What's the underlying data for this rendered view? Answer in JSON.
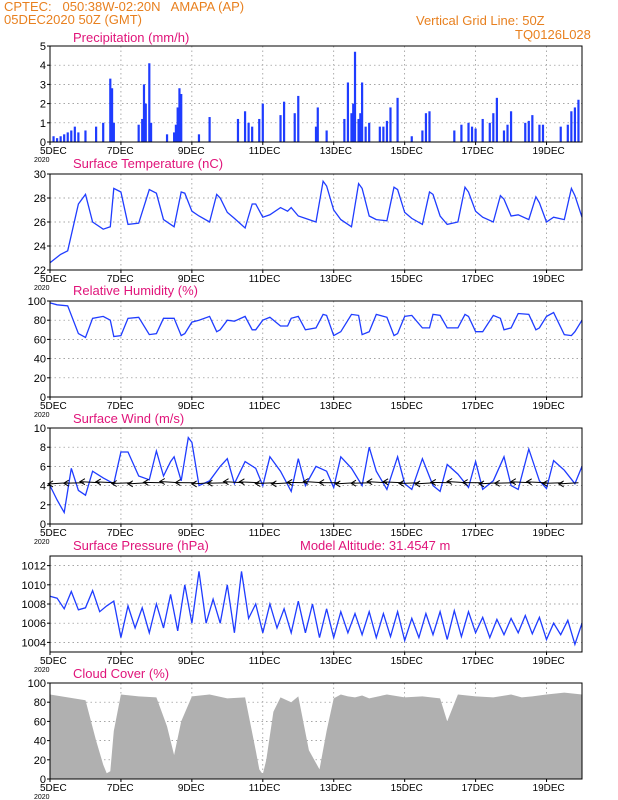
{
  "header": {
    "line1_left": "CPTEC:   050:38W-02:20N   AMAPA (AP)",
    "line2_left": "05DEC2020 50Z (GMT)",
    "line1_right": "Vertical Grid Line: 50Z",
    "line2_right": "TQ0126L028"
  },
  "colors": {
    "header": "#e8801f",
    "title": "#e0147a",
    "series": "#1f3cff",
    "cloud": "#b0b0b0",
    "arrows": "#000000"
  },
  "x_axis": {
    "days_range": [
      5,
      20
    ],
    "tick_days": [
      5,
      7,
      9,
      11,
      13,
      15,
      17,
      19
    ],
    "tick_labels": [
      "5DEC",
      "7DEC",
      "9DEC",
      "11DEC",
      "13DEC",
      "15DEC",
      "17DEC",
      "19DEC"
    ],
    "first_tick_sublabel": "2020"
  },
  "chart_data": [
    {
      "type": "bar",
      "title": "Precipitation (mm/h)",
      "ylim": [
        0,
        5
      ],
      "yticks": [
        0,
        1,
        2,
        3,
        4,
        5
      ],
      "grid": true,
      "series": [
        {
          "x": [
            5.1,
            5.2,
            5.3,
            5.4,
            5.5,
            5.6,
            5.7,
            5.8,
            6.0,
            6.3,
            6.5,
            6.7,
            6.75,
            6.8,
            7.5,
            7.6,
            7.65,
            7.7,
            7.8,
            7.85,
            8.3,
            8.5,
            8.55,
            8.6,
            8.65,
            8.7,
            9.2,
            9.5,
            10.3,
            10.5,
            10.6,
            10.7,
            10.9,
            11.0,
            11.5,
            11.6,
            11.9,
            12.0,
            12.5,
            12.55,
            12.8,
            13.3,
            13.4,
            13.5,
            13.55,
            13.6,
            13.7,
            13.75,
            13.8,
            13.9,
            14.0,
            14.3,
            14.4,
            14.5,
            14.6,
            14.8,
            15.2,
            15.5,
            15.6,
            15.7,
            16.4,
            16.6,
            16.8,
            16.9,
            17.0,
            17.2,
            17.4,
            17.5,
            17.6,
            17.8,
            17.9,
            18.0,
            18.4,
            18.5,
            18.6,
            18.8,
            18.9,
            19.4,
            19.6,
            19.7,
            19.8,
            19.9
          ],
          "values": [
            0.3,
            0.2,
            0.3,
            0.4,
            0.5,
            0.6,
            0.8,
            0.5,
            0.6,
            0.8,
            1.0,
            3.3,
            2.8,
            1.0,
            0.9,
            1.2,
            3.0,
            2.0,
            4.1,
            1.0,
            0.4,
            0.5,
            0.9,
            1.8,
            2.8,
            2.5,
            0.4,
            1.3,
            1.2,
            1.6,
            1.0,
            0.8,
            1.2,
            2.0,
            1.4,
            2.1,
            1.5,
            2.4,
            0.8,
            1.8,
            0.6,
            1.2,
            3.1,
            1.5,
            2.0,
            4.7,
            1.2,
            1.5,
            3.1,
            0.8,
            1.0,
            0.8,
            0.8,
            1.1,
            1.8,
            2.3,
            0.3,
            0.6,
            1.5,
            1.6,
            0.6,
            0.9,
            1.0,
            0.8,
            0.7,
            1.2,
            1.0,
            1.5,
            2.3,
            0.6,
            0.9,
            1.6,
            1.0,
            1.1,
            1.4,
            0.9,
            0.9,
            0.8,
            0.9,
            1.6,
            1.8,
            2.2
          ]
        }
      ]
    },
    {
      "type": "line",
      "title": "Surface Temperature (nC)",
      "ylim": [
        22,
        30
      ],
      "yticks": [
        22,
        24,
        26,
        28,
        30
      ],
      "grid": true,
      "series": [
        {
          "x": [
            5,
            5.3,
            5.5,
            5.8,
            6.0,
            6.2,
            6.5,
            6.7,
            6.8,
            7.0,
            7.2,
            7.5,
            7.8,
            8.0,
            8.2,
            8.5,
            8.7,
            8.8,
            9.0,
            9.2,
            9.5,
            9.7,
            9.8,
            10.0,
            10.2,
            10.5,
            10.7,
            10.8,
            11.0,
            11.2,
            11.5,
            11.7,
            11.8,
            12.0,
            12.2,
            12.5,
            12.7,
            12.8,
            13.0,
            13.2,
            13.5,
            13.7,
            13.8,
            14.0,
            14.2,
            14.5,
            14.7,
            14.8,
            15.0,
            15.2,
            15.5,
            15.7,
            15.8,
            16.0,
            16.2,
            16.5,
            16.7,
            16.8,
            17.0,
            17.2,
            17.5,
            17.7,
            17.8,
            18.0,
            18.2,
            18.5,
            18.7,
            18.8,
            19.0,
            19.2,
            19.5,
            19.7,
            19.8,
            20.0
          ],
          "values": [
            22.6,
            23.3,
            23.6,
            27.5,
            28.3,
            26.0,
            25.4,
            25.6,
            28.8,
            28.5,
            25.8,
            25.9,
            28.7,
            28.4,
            26.2,
            25.6,
            28.5,
            28.4,
            26.9,
            26.5,
            26.0,
            28.3,
            28.0,
            26.8,
            26.3,
            25.5,
            27.5,
            27.5,
            26.4,
            26.6,
            27.2,
            26.9,
            27.2,
            26.5,
            26.3,
            26.0,
            29.4,
            29.0,
            27.0,
            26.2,
            25.6,
            29.2,
            28.8,
            26.5,
            26.2,
            26.1,
            28.9,
            28.7,
            26.8,
            26.3,
            25.8,
            28.5,
            28.3,
            26.5,
            25.8,
            26.0,
            28.9,
            28.5,
            26.9,
            26.4,
            26.0,
            28.2,
            27.9,
            26.5,
            26.6,
            26.2,
            28.1,
            27.6,
            26.0,
            26.4,
            26.2,
            28.8,
            28.2,
            26.4
          ]
        }
      ]
    },
    {
      "type": "line",
      "title": "Relative Humidity (%)",
      "ylim": [
        0,
        100
      ],
      "yticks": [
        0,
        20,
        40,
        60,
        80,
        100
      ],
      "grid": true,
      "series": [
        {
          "x": [
            5,
            5.2,
            5.5,
            5.8,
            6.0,
            6.2,
            6.5,
            6.7,
            6.8,
            7.0,
            7.2,
            7.5,
            7.8,
            8.0,
            8.2,
            8.5,
            8.7,
            8.8,
            9.0,
            9.2,
            9.5,
            9.7,
            9.8,
            10.0,
            10.2,
            10.5,
            10.7,
            10.8,
            11.0,
            11.2,
            11.5,
            11.7,
            11.8,
            12.0,
            12.2,
            12.5,
            12.7,
            12.8,
            13.0,
            13.2,
            13.5,
            13.7,
            13.8,
            14.0,
            14.2,
            14.5,
            14.7,
            14.8,
            15.0,
            15.2,
            15.5,
            15.7,
            15.8,
            16.0,
            16.2,
            16.5,
            16.7,
            16.8,
            17.0,
            17.2,
            17.5,
            17.7,
            17.8,
            18.0,
            18.2,
            18.5,
            18.7,
            18.8,
            19.0,
            19.2,
            19.5,
            19.7,
            19.8,
            20.0
          ],
          "values": [
            98,
            96,
            95,
            66,
            62,
            82,
            84,
            80,
            63,
            64,
            82,
            83,
            65,
            66,
            82,
            82,
            64,
            66,
            78,
            80,
            84,
            68,
            70,
            80,
            79,
            84,
            70,
            70,
            80,
            83,
            74,
            74,
            82,
            84,
            70,
            72,
            86,
            85,
            64,
            68,
            86,
            85,
            65,
            68,
            86,
            83,
            64,
            66,
            84,
            85,
            72,
            72,
            86,
            85,
            72,
            72,
            86,
            84,
            68,
            68,
            85,
            82,
            70,
            72,
            87,
            86,
            70,
            72,
            84,
            88,
            65,
            64,
            68,
            80
          ]
        }
      ]
    },
    {
      "type": "line",
      "title": "Surface Wind (m/s)",
      "ylim": [
        0,
        10
      ],
      "yticks": [
        0,
        2,
        4,
        6,
        8,
        10
      ],
      "grid": true,
      "series": [
        {
          "x": [
            5,
            5.2,
            5.4,
            5.6,
            5.8,
            6.0,
            6.2,
            6.5,
            6.8,
            7.0,
            7.2,
            7.5,
            7.8,
            8.0,
            8.2,
            8.4,
            8.5,
            8.7,
            8.9,
            9.0,
            9.2,
            9.5,
            9.8,
            10.0,
            10.2,
            10.5,
            10.8,
            11.0,
            11.2,
            11.5,
            11.8,
            12.0,
            12.2,
            12.5,
            12.8,
            13.0,
            13.2,
            13.5,
            13.8,
            14.0,
            14.2,
            14.5,
            14.8,
            15.0,
            15.2,
            15.5,
            15.8,
            16.0,
            16.2,
            16.5,
            16.8,
            17.0,
            17.2,
            17.5,
            17.8,
            18.0,
            18.2,
            18.5,
            18.8,
            19.0,
            19.2,
            19.5,
            19.8,
            20.0
          ],
          "values": [
            4.0,
            2.5,
            1.2,
            5.8,
            3.5,
            3.0,
            5.5,
            4.8,
            4.2,
            7.5,
            7.5,
            5.0,
            4.6,
            7.6,
            5.0,
            6.5,
            7.0,
            4.5,
            9.0,
            8.5,
            4.0,
            4.5,
            6.0,
            6.8,
            4.2,
            6.5,
            5.8,
            4.0,
            7.0,
            5.5,
            3.4,
            6.8,
            4.0,
            6.0,
            5.5,
            3.8,
            7.0,
            5.8,
            4.0,
            8.0,
            5.5,
            3.6,
            7.0,
            4.2,
            3.6,
            6.8,
            4.0,
            3.4,
            6.2,
            5.2,
            3.8,
            6.5,
            3.6,
            4.5,
            7.0,
            4.0,
            3.6,
            7.8,
            4.5,
            3.7,
            6.6,
            5.6,
            4.2,
            6.0
          ]
        }
      ],
      "vectors_shown": true
    },
    {
      "type": "line",
      "title": "Surface Pressure (hPa)",
      "annotation": "Model Altitude: 31.4547 m",
      "ylim": [
        1003,
        1013
      ],
      "yticks": [
        1004,
        1006,
        1008,
        1010,
        1012
      ],
      "grid": true,
      "series": [
        {
          "x": [
            5,
            5.2,
            5.4,
            5.6,
            5.8,
            6.0,
            6.2,
            6.4,
            6.6,
            6.8,
            7.0,
            7.2,
            7.4,
            7.6,
            7.8,
            8.0,
            8.2,
            8.4,
            8.6,
            8.8,
            9.0,
            9.2,
            9.4,
            9.6,
            9.8,
            10.0,
            10.2,
            10.4,
            10.6,
            10.8,
            11.0,
            11.2,
            11.4,
            11.6,
            11.8,
            12.0,
            12.2,
            12.4,
            12.6,
            12.8,
            13.0,
            13.2,
            13.4,
            13.6,
            13.8,
            14.0,
            14.2,
            14.4,
            14.6,
            14.8,
            15.0,
            15.2,
            15.4,
            15.6,
            15.8,
            16.0,
            16.2,
            16.4,
            16.6,
            16.8,
            17.0,
            17.2,
            17.4,
            17.6,
            17.8,
            18.0,
            18.2,
            18.4,
            18.6,
            18.8,
            19.0,
            19.2,
            19.4,
            19.6,
            19.8,
            20.0
          ],
          "values": [
            1008.8,
            1008.6,
            1007.5,
            1009.3,
            1007.4,
            1007.6,
            1009.4,
            1007.2,
            1007.8,
            1008.3,
            1004.5,
            1007.8,
            1005.5,
            1007.6,
            1005.0,
            1008.0,
            1005.5,
            1009.0,
            1005.2,
            1010.0,
            1006.0,
            1011.4,
            1006.0,
            1008.5,
            1006.0,
            1010.0,
            1005.0,
            1011.4,
            1006.5,
            1008.0,
            1005.0,
            1008.0,
            1005.5,
            1007.5,
            1005.0,
            1008.3,
            1005.0,
            1008.0,
            1004.5,
            1007.5,
            1004.5,
            1007.2,
            1005.0,
            1007.0,
            1004.8,
            1007.2,
            1004.5,
            1007.0,
            1004.6,
            1007.2,
            1004.2,
            1006.5,
            1004.5,
            1007.0,
            1004.8,
            1007.2,
            1004.3,
            1007.3,
            1004.6,
            1007.2,
            1005.0,
            1006.6,
            1004.5,
            1006.4,
            1004.8,
            1006.5,
            1005.0,
            1006.8,
            1004.9,
            1006.6,
            1004.3,
            1006.0,
            1004.8,
            1006.3,
            1003.8,
            1006.0
          ]
        }
      ]
    },
    {
      "type": "area",
      "title": "Cloud Cover (%)",
      "ylim": [
        0,
        100
      ],
      "yticks": [
        0,
        20,
        40,
        60,
        80,
        100
      ],
      "grid": true,
      "series": [
        {
          "x": [
            5,
            5.5,
            6.0,
            6.3,
            6.5,
            6.6,
            6.7,
            6.8,
            7.0,
            7.5,
            8.0,
            8.3,
            8.5,
            8.7,
            9.0,
            9.5,
            10.0,
            10.5,
            10.8,
            10.9,
            11.0,
            11.1,
            11.3,
            11.5,
            11.8,
            12.0,
            12.3,
            12.6,
            12.8,
            13.0,
            13.2,
            13.4,
            13.6,
            13.8,
            14.0,
            14.5,
            15.0,
            15.5,
            16.0,
            16.2,
            16.5,
            17.0,
            17.5,
            18.0,
            18.3,
            18.6,
            19.0,
            19.5,
            20.0
          ],
          "values": [
            88,
            85,
            82,
            40,
            15,
            6,
            8,
            50,
            88,
            86,
            85,
            55,
            25,
            60,
            86,
            88,
            84,
            85,
            30,
            10,
            5,
            20,
            70,
            85,
            80,
            86,
            30,
            10,
            50,
            84,
            88,
            86,
            85,
            87,
            84,
            88,
            85,
            86,
            84,
            60,
            88,
            86,
            85,
            88,
            85,
            86,
            88,
            90,
            88
          ]
        }
      ]
    }
  ]
}
